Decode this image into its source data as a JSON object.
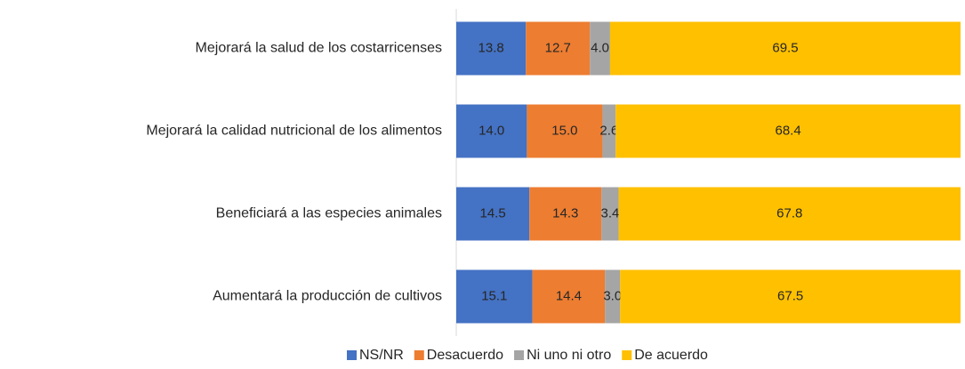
{
  "chart_data": {
    "type": "stacked_bar_horizontal",
    "categories": [
      "Mejorará la salud de los costarricenses",
      "Mejorará la calidad nutricional de los alimentos",
      "Beneficiará a las especies animales",
      "Aumentará la producción de cultivos"
    ],
    "series": [
      {
        "name": "NS/NR",
        "color": "#4472c4",
        "values": [
          13.8,
          14.0,
          14.5,
          15.1
        ],
        "value_labels": [
          "13.8",
          "14.0",
          "14.5",
          "15.1"
        ]
      },
      {
        "name": "Desacuerdo",
        "color": "#ed7d31",
        "values": [
          12.7,
          15.0,
          14.3,
          14.4
        ],
        "value_labels": [
          "12.7",
          "15.0",
          "14.3",
          "14.4"
        ]
      },
      {
        "name": "Ni uno ni otro",
        "color": "#a5a5a5",
        "values": [
          4.0,
          2.6,
          3.4,
          3.0
        ],
        "value_labels": [
          "4.0",
          "2.6",
          "3.4",
          "3.0"
        ]
      },
      {
        "name": "De acuerdo",
        "color": "#ffc000",
        "values": [
          69.5,
          68.4,
          67.8,
          67.5
        ],
        "value_labels": [
          "69.5",
          "68.4",
          "67.8",
          "67.5"
        ]
      }
    ],
    "xlim": [
      0,
      100
    ],
    "legend": "bottom"
  }
}
